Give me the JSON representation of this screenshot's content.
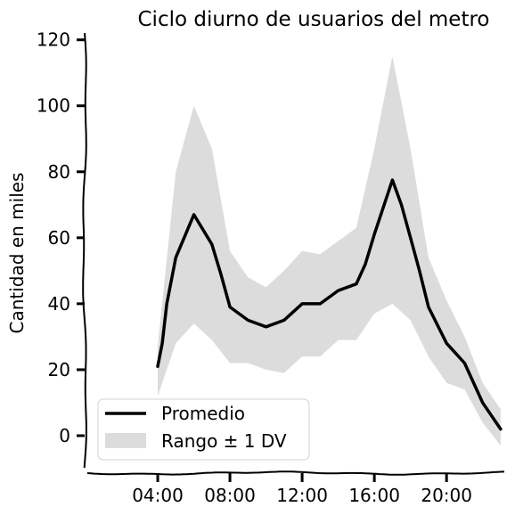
{
  "chart_data": {
    "type": "line",
    "title": "Ciclo diurno de usuarios del metro",
    "xlabel": "",
    "ylabel": "Cantidad en miles",
    "x_unit": "hour of day",
    "xlim": [
      0,
      23.2
    ],
    "ylim": [
      -10,
      121
    ],
    "x_ticks": [
      {
        "value": 4,
        "label": "04:00"
      },
      {
        "value": 8,
        "label": "08:00"
      },
      {
        "value": 12,
        "label": "12:00"
      },
      {
        "value": 16,
        "label": "16:00"
      },
      {
        "value": 20,
        "label": "20:00"
      }
    ],
    "y_ticks": [
      {
        "value": 0,
        "label": "0"
      },
      {
        "value": 20,
        "label": "20"
      },
      {
        "value": 40,
        "label": "40"
      },
      {
        "value": 60,
        "label": "60"
      },
      {
        "value": 80,
        "label": "80"
      },
      {
        "value": 100,
        "label": "100"
      },
      {
        "value": 120,
        "label": "120"
      }
    ],
    "grid": false,
    "legend_position": "bottom-left",
    "series": [
      {
        "name": "Promedio",
        "kind": "line",
        "color": "#000000",
        "x": [
          4,
          4.25,
          4.5,
          5,
          6,
          7,
          7.5,
          8,
          9,
          10,
          11,
          12,
          13,
          14,
          15,
          15.5,
          16,
          17,
          17.5,
          18,
          18.5,
          19,
          20,
          21,
          22,
          23
        ],
        "y": [
          21,
          28,
          40,
          54,
          67,
          58,
          49,
          39,
          35,
          33,
          35,
          40,
          40,
          44,
          46,
          52,
          61,
          77.5,
          70,
          60,
          50,
          39,
          28,
          22,
          10,
          2
        ]
      },
      {
        "name": "Rango ± 1 DV",
        "kind": "band",
        "color": "#dcdcdc",
        "x": [
          4,
          5,
          6,
          7,
          8,
          9,
          10,
          11,
          12,
          13,
          14,
          15,
          16,
          17,
          18,
          19,
          20,
          21,
          22,
          23
        ],
        "upper": [
          27,
          80,
          100,
          87,
          56,
          48,
          45,
          50,
          56,
          55,
          59,
          63,
          87,
          115,
          87,
          54,
          41,
          30,
          16,
          8
        ],
        "lower": [
          12,
          28,
          34,
          29,
          22,
          22,
          20,
          19,
          24,
          24,
          29,
          29,
          37,
          40,
          35,
          24,
          16,
          14,
          4,
          -3
        ]
      }
    ]
  }
}
